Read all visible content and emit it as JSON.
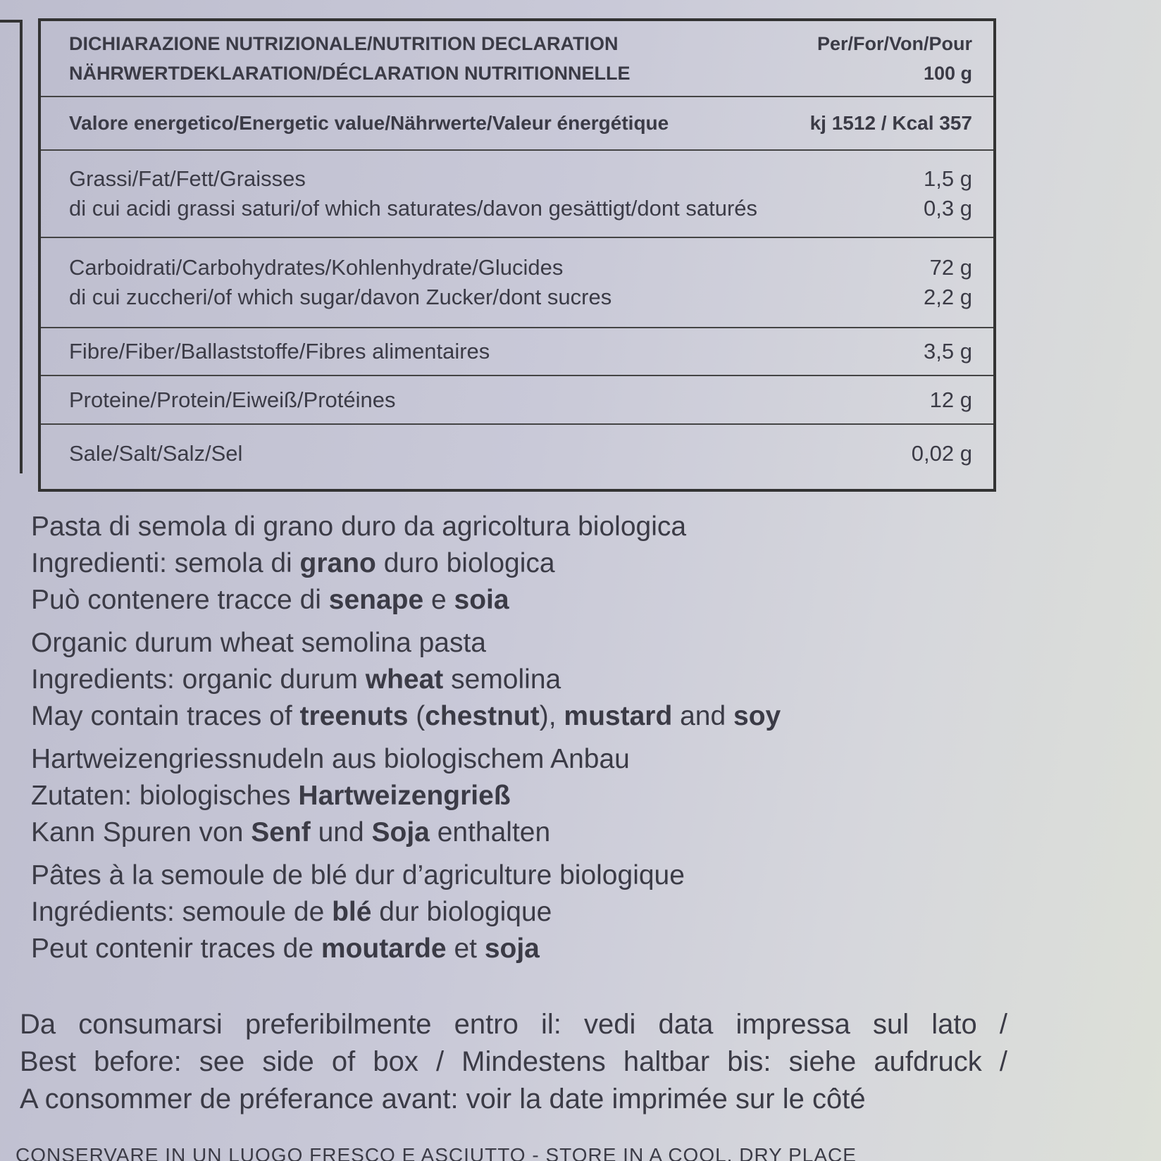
{
  "table": {
    "header": {
      "title": [
        "DICHIARAZIONE NUTRIZIONALE/NUTRITION DECLARATION",
        "NÄHRWERTDEKLARATION/DÉCLARATION NUTRITIONNELLE"
      ],
      "per": [
        "Per/For/Von/Pour",
        "100 g"
      ]
    },
    "rows": [
      {
        "labels": [
          "Valore energetico/Energetic value/Nährwerte/Valeur énergétique"
        ],
        "values": [
          "kj 1512 / Kcal 357"
        ],
        "bold": true
      },
      {
        "labels": [
          "Grassi/Fat/Fett/Graisses",
          "di cui acidi grassi saturi/of which saturates/davon gesättigt/dont saturés"
        ],
        "values": [
          "1,5 g",
          "0,3 g"
        ]
      },
      {
        "labels": [
          "Carboidrati/Carbohydrates/Kohlenhydrate/Glucides",
          "di cui zuccheri/of which sugar/davon Zucker/dont sucres"
        ],
        "values": [
          "72 g",
          "2,2 g"
        ]
      },
      {
        "labels": [
          "Fibre/Fiber/Ballaststoffe/Fibres alimentaires"
        ],
        "values": [
          "3,5 g"
        ]
      },
      {
        "labels": [
          "Proteine/Protein/Eiweiß/Protéines"
        ],
        "values": [
          "12 g"
        ]
      },
      {
        "labels": [
          "Sale/Salt/Salz/Sel"
        ],
        "values": [
          "0,02 g"
        ]
      }
    ]
  },
  "ingredients": [
    [
      [
        {
          "text": "Pasta di semola di grano duro da agricoltura biologica"
        }
      ],
      [
        {
          "text": "Ingredienti: semola di "
        },
        {
          "text": "grano",
          "bold": true
        },
        {
          "text": " duro biologica"
        }
      ],
      [
        {
          "text": "Può contenere tracce di "
        },
        {
          "text": "senape",
          "bold": true
        },
        {
          "text": " e "
        },
        {
          "text": "soia",
          "bold": true
        }
      ]
    ],
    [
      [
        {
          "text": "Organic durum wheat semolina pasta"
        }
      ],
      [
        {
          "text": "Ingredients: organic durum "
        },
        {
          "text": "wheat",
          "bold": true
        },
        {
          "text": " semolina"
        }
      ],
      [
        {
          "text": "May contain traces of "
        },
        {
          "text": "treenuts",
          "bold": true
        },
        {
          "text": " ("
        },
        {
          "text": "chestnut",
          "bold": true
        },
        {
          "text": "), "
        },
        {
          "text": "mustard",
          "bold": true
        },
        {
          "text": " and "
        },
        {
          "text": "soy",
          "bold": true
        }
      ]
    ],
    [
      [
        {
          "text": "Hartweizengriessnudeln aus biologischem Anbau"
        }
      ],
      [
        {
          "text": "Zutaten: biologisches "
        },
        {
          "text": "Hartweizengrieß",
          "bold": true
        }
      ],
      [
        {
          "text": "Kann Spuren von "
        },
        {
          "text": "Senf",
          "bold": true
        },
        {
          "text": " und "
        },
        {
          "text": "Soja",
          "bold": true
        },
        {
          "text": " enthalten"
        }
      ]
    ],
    [
      [
        {
          "text": "Pâtes à la semoule de blé dur d’agriculture biologique"
        }
      ],
      [
        {
          "text": "Ingrédients: semoule de "
        },
        {
          "text": "blé",
          "bold": true
        },
        {
          "text": " dur biologique"
        }
      ],
      [
        {
          "text": "Peut contenir traces de "
        },
        {
          "text": "moutarde",
          "bold": true
        },
        {
          "text": " et "
        },
        {
          "text": "soja",
          "bold": true
        }
      ]
    ]
  ],
  "best_before": [
    "Da consumarsi preferibilmente entro il: vedi data impressa sul lato /",
    "Best before: see side of box / Mindestens haltbar bis: siehe aufdruck /",
    "A consommer de préferance avant: voir la date imprimée sur le côté"
  ],
  "storage": "CONSERVARE IN UN LUOGO FRESCO E ASCIUTTO - STORE IN A COOL, DRY PLACE"
}
